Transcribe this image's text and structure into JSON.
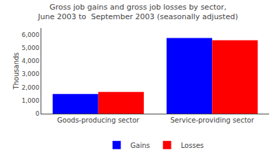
{
  "chart_data": {
    "type": "bar",
    "title": "Gross job gains and gross job losses by sector,\nJune 2003 to  September 2003 (seasonally adjusted)",
    "ylabel": "Thousands",
    "categories": [
      "Goods-producing sector",
      "Service-providing sector"
    ],
    "series": [
      {
        "name": "Gains",
        "color": "#0000FF",
        "values": [
          1500,
          5750
        ]
      },
      {
        "name": "Losses",
        "color": "#FF0000",
        "values": [
          1650,
          5580
        ]
      }
    ],
    "ylim": [
      0,
      6500
    ],
    "yticks": [
      0,
      {
        "value": 1000,
        "label": "1,000"
      },
      {
        "value": 2000,
        "label": "2,000"
      },
      {
        "value": 3000,
        "label": "3,000"
      },
      {
        "value": 4000,
        "label": "4,000"
      },
      {
        "value": 5000,
        "label": "5,000"
      },
      {
        "value": 6000,
        "label": "6,000"
      }
    ],
    "grid": false,
    "legend": "bottom"
  }
}
